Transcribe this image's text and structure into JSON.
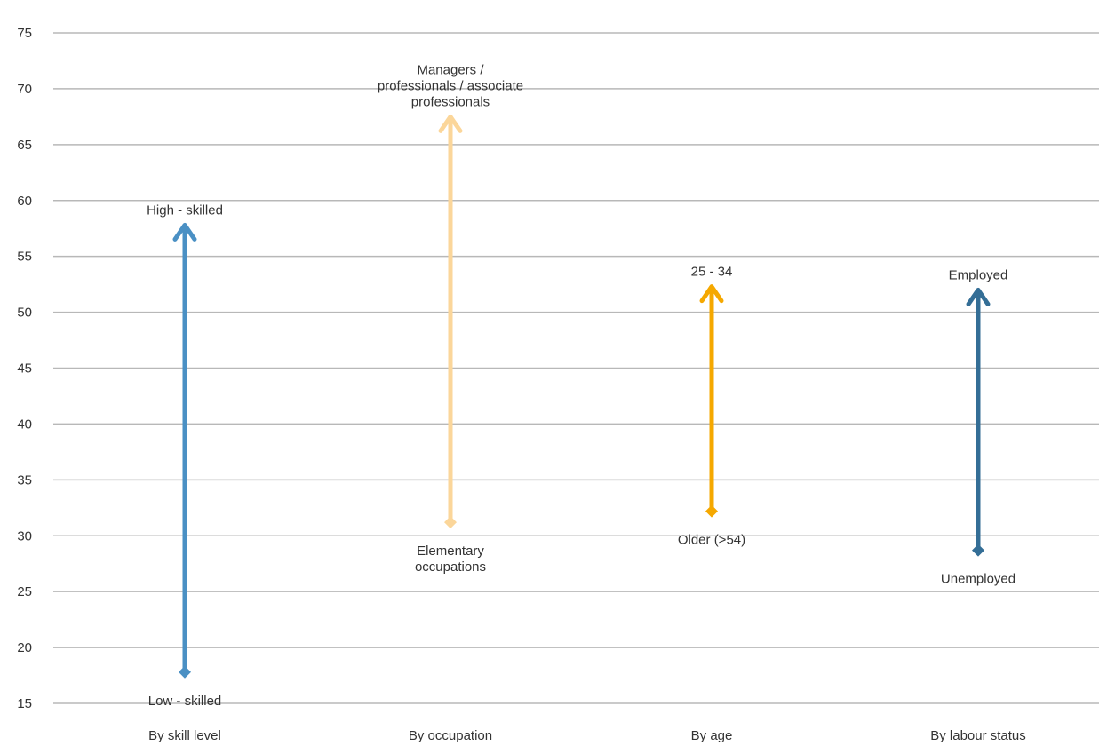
{
  "chart_data": {
    "type": "range-arrow",
    "title": "",
    "xlabel": "",
    "ylabel": "",
    "ylim": [
      15,
      75
    ],
    "yticks": [
      15,
      20,
      25,
      30,
      35,
      40,
      45,
      50,
      55,
      60,
      65,
      70,
      75
    ],
    "grid": true,
    "categories": [
      "By skill level",
      "By occupation",
      "By age",
      "By labour status"
    ],
    "ranges": [
      {
        "category": "By skill level",
        "low": 17.8,
        "high": 57.8,
        "low_label": "Low - skilled",
        "high_label": "High - skilled",
        "color": "#4a90c4"
      },
      {
        "category": "By occupation",
        "low": 31.2,
        "high": 67.5,
        "low_label": "Elementary\noccupations",
        "high_label": "Managers /\nprofessionals / associate\nprofessionals",
        "color": "#fbd69a"
      },
      {
        "category": "By age",
        "low": 32.2,
        "high": 52.3,
        "low_label": "Older (>54)",
        "high_label": "25 - 34",
        "color": "#f5a800"
      },
      {
        "category": "By labour status",
        "low": 28.7,
        "high": 52.0,
        "low_label": "Unemployed",
        "high_label": "Employed",
        "color": "#346e96"
      }
    ]
  }
}
